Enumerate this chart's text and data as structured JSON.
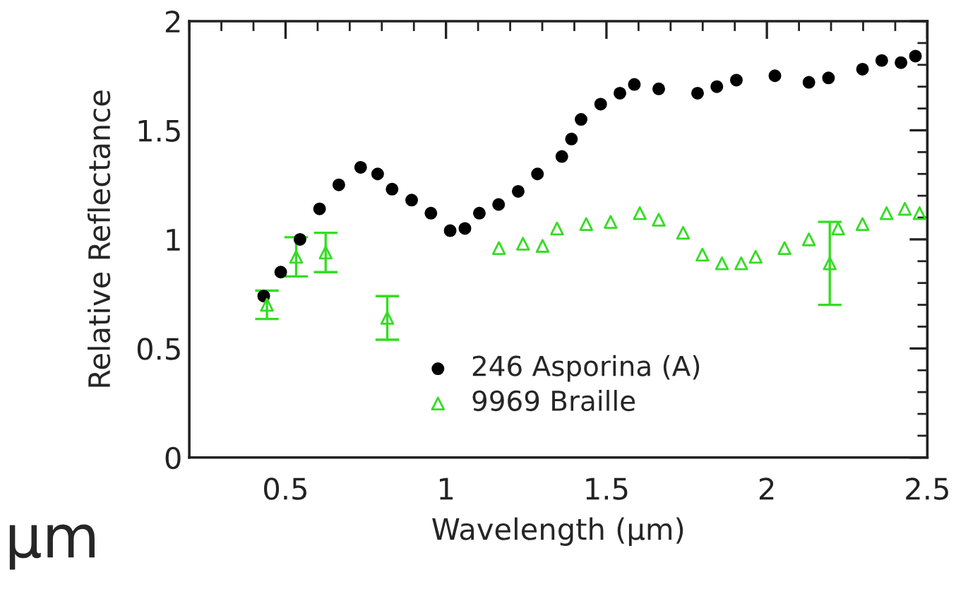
{
  "chart_data": {
    "type": "scatter",
    "xlabel": "Wavelength (µm)",
    "ylabel": "Relative Reflectance",
    "xlim": [
      0.2,
      2.5
    ],
    "xticks": [
      0.5,
      1,
      1.5,
      2,
      2.5
    ],
    "ylim": [
      0,
      2
    ],
    "yticks": [
      0,
      0.5,
      1,
      1.5,
      2
    ],
    "grid": false,
    "legend": "bottom right",
    "annotations": [
      "µm"
    ],
    "series": [
      {
        "name": "246 Asporina (A)",
        "color": "#000000",
        "marker": "circle",
        "x": [
          0.432,
          0.485,
          0.545,
          0.606,
          0.666,
          0.734,
          0.787,
          0.832,
          0.893,
          0.953,
          1.013,
          1.059,
          1.104,
          1.164,
          1.225,
          1.285,
          1.361,
          1.391,
          1.421,
          1.482,
          1.542,
          1.587,
          1.663,
          1.784,
          1.844,
          1.905,
          2.025,
          2.131,
          2.192,
          2.298,
          2.358,
          2.418,
          2.463
        ],
        "values": [
          0.74,
          0.85,
          1.0,
          1.14,
          1.25,
          1.33,
          1.3,
          1.23,
          1.18,
          1.12,
          1.04,
          1.05,
          1.12,
          1.16,
          1.22,
          1.3,
          1.38,
          1.46,
          1.55,
          1.62,
          1.67,
          1.71,
          1.69,
          1.67,
          1.7,
          1.73,
          1.75,
          1.72,
          1.74,
          1.78,
          1.82,
          1.81,
          1.84
        ]
      },
      {
        "name": "9969 Braille",
        "color": "#33dd22",
        "marker": "triangle",
        "x": [
          0.442,
          0.533,
          0.625,
          0.817,
          1.165,
          1.24,
          1.301,
          1.346,
          1.437,
          1.513,
          1.604,
          1.663,
          1.739,
          1.799,
          1.86,
          1.92,
          1.965,
          2.055,
          2.131,
          2.196,
          2.222,
          2.298,
          2.373,
          2.43,
          2.476
        ],
        "values": [
          0.7,
          0.92,
          0.94,
          0.64,
          0.96,
          0.98,
          0.97,
          1.05,
          1.07,
          1.08,
          1.12,
          1.09,
          1.03,
          0.93,
          0.89,
          0.89,
          0.92,
          0.96,
          1.0,
          0.89,
          1.05,
          1.07,
          1.12,
          1.14,
          1.12
        ],
        "errors": [
          0.065,
          0.09,
          0.09,
          0.1,
          null,
          null,
          null,
          null,
          null,
          null,
          null,
          null,
          null,
          null,
          null,
          null,
          null,
          null,
          null,
          0.19,
          null,
          null,
          null,
          null,
          null
        ]
      }
    ]
  }
}
